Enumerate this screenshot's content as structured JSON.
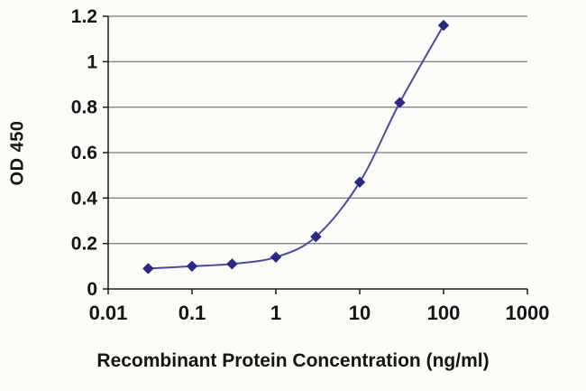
{
  "chart_data": {
    "type": "line",
    "title": "",
    "xlabel": "Recombinant Protein Concentration (ng/ml)",
    "ylabel": "OD 450",
    "x_scale": "log",
    "xlim": [
      0.01,
      1000
    ],
    "ylim": [
      0,
      1.2
    ],
    "x": [
      0.03,
      0.1,
      0.3,
      1,
      3,
      10,
      30,
      100
    ],
    "y": [
      0.09,
      0.1,
      0.11,
      0.14,
      0.23,
      0.47,
      0.82,
      1.16
    ],
    "x_ticks": [
      0.01,
      0.1,
      1,
      10,
      100,
      1000
    ],
    "x_tick_labels": [
      "0.01",
      "0.1",
      "1",
      "10",
      "100",
      "1000"
    ],
    "y_ticks": [
      0,
      0.2,
      0.4,
      0.6,
      0.8,
      1,
      1.2
    ],
    "y_tick_labels": [
      "0",
      "0.2",
      "0.4",
      "0.6",
      "0.8",
      "1",
      "1.2"
    ],
    "grid": "horizontal",
    "legend": "none",
    "line_color": "#4a4aa6",
    "marker": "diamond",
    "marker_color": "#2a2a85",
    "grid_color": "#5a5a5a",
    "axis_color": "#1a1a1a",
    "text_color": "#151515",
    "background_color": "#fbfbf8"
  }
}
